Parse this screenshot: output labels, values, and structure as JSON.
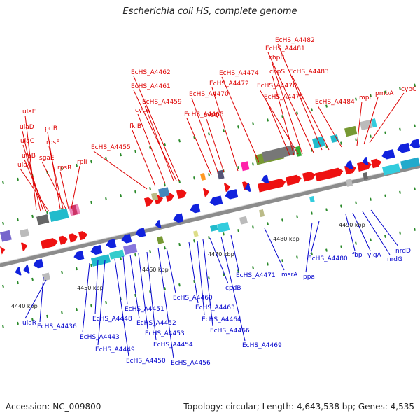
{
  "title": "Escherichia coli HS, complete genome",
  "footer": {
    "accession": "Accession: NC_009800",
    "topology": "Topology: circular; Length: 4,643,538 bp; Genes: 4,535"
  },
  "colors": {
    "forward_label": "#dd0000",
    "reverse_label": "#0000cc",
    "backbone": "#888888"
  },
  "ticks": [
    "4440 kbp",
    "4450 kbp",
    "4460 kbp",
    "4470 kbp",
    "4480 kbp",
    "4490 kbp"
  ],
  "forward_labels": [
    "ulaE",
    "ulaD",
    "ulaC",
    "ulaB",
    "ulaA",
    "priB",
    "rpsF",
    "sgaE",
    "rpsR",
    "rplI",
    "EcHS_A4455",
    "fklB",
    "cycA",
    "EcHS_A4459",
    "EcHS_A4461",
    "EcHS_A4462",
    "EcHS_A4465",
    "cysQ",
    "EcHS_A4470",
    "EcHS_A4472",
    "EcHS_A4474",
    "EcHS_A4475",
    "chpS",
    "EcHS_A4476",
    "chpB",
    "EcHS_A4481",
    "EcHS_A4482",
    "EcHS_A4483",
    "EcHS_A4484",
    "mpl",
    "pmbA",
    "cybC"
  ],
  "reverse_labels": [
    "ulaR",
    "EcHS_A4436",
    "EcHS_A4443",
    "EcHS_A4448",
    "EcHS_A4449",
    "EcHS_A4450",
    "EcHS_A4451",
    "EcHS_A4452",
    "EcHS_A4453",
    "EcHS_A4454",
    "EcHS_A4456",
    "EcHS_A4460",
    "EcHS_A4463",
    "EcHS_A4464",
    "EcHS_A4466",
    "cpdB",
    "EcHS_A4469",
    "EcHS_A4471",
    "msrA",
    "ppa",
    "EcHS_A4480",
    "fbp",
    "yjgA",
    "nrdG",
    "nrdD"
  ]
}
